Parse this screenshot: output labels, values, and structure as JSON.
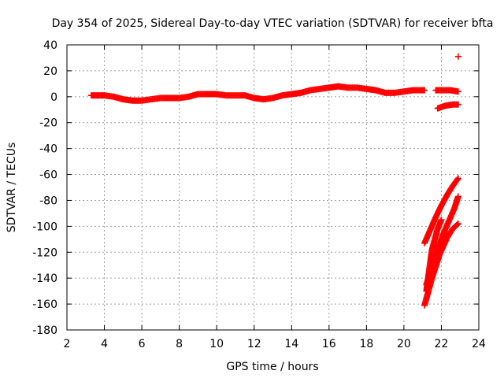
{
  "chart_data": {
    "type": "scatter",
    "title": "Day 354 of 2025, Sidereal Day-to-day VTEC variation (SDTVAR) for receiver bfta",
    "xlabel": "GPS time / hours",
    "ylabel": "SDTVAR / TECUs",
    "xlim": [
      2,
      24
    ],
    "ylim": [
      -180,
      40
    ],
    "xticks": [
      2,
      4,
      6,
      8,
      10,
      12,
      14,
      16,
      18,
      20,
      22,
      24
    ],
    "yticks": [
      -180,
      -160,
      -140,
      -120,
      -100,
      -80,
      -60,
      -40,
      -20,
      0,
      20,
      40
    ],
    "grid": true,
    "marker": "+",
    "color": "#ff0000",
    "series": [
      {
        "name": "main-trace",
        "x": [
          3.3,
          4.0,
          4.5,
          5.0,
          5.5,
          6.0,
          6.5,
          7.0,
          7.5,
          8.0,
          8.5,
          9.0,
          9.5,
          10.0,
          10.5,
          11.0,
          11.5,
          12.0,
          12.5,
          13.0,
          13.5,
          14.0,
          14.5,
          15.0,
          15.5,
          16.0,
          16.5,
          17.0,
          17.5,
          18.0,
          18.5,
          19.0,
          19.5,
          20.0,
          20.5,
          21.1
        ],
        "y": [
          1,
          1,
          0,
          -2,
          -3,
          -3,
          -2,
          -1,
          -1,
          -1,
          0,
          2,
          2,
          2,
          1,
          1,
          1,
          -1,
          -2,
          -1,
          1,
          2,
          3,
          5,
          6,
          7,
          8,
          7,
          7,
          6,
          5,
          3,
          3,
          4,
          5,
          5
        ]
      },
      {
        "name": "late-upper-1",
        "x": [
          21.7,
          22.0,
          22.5,
          22.9
        ],
        "y": [
          5,
          5,
          5,
          4
        ]
      },
      {
        "name": "late-upper-2",
        "x": [
          21.8,
          22.2,
          22.6,
          22.9
        ],
        "y": [
          -9,
          -7,
          -6,
          -6
        ]
      },
      {
        "name": "late-outlier",
        "x": [
          22.9
        ],
        "y": [
          31
        ]
      },
      {
        "name": "late-descent-1",
        "x": [
          21.1,
          21.4,
          21.7,
          22.0,
          22.3,
          22.6,
          22.9
        ],
        "y": [
          -113,
          -103,
          -93,
          -84,
          -76,
          -69,
          -63
        ]
      },
      {
        "name": "late-descent-2",
        "x": [
          21.2,
          21.5,
          21.8,
          22.1,
          22.4,
          22.7,
          22.9
        ],
        "y": [
          -145,
          -131,
          -118,
          -106,
          -96,
          -86,
          -77
        ]
      },
      {
        "name": "late-descent-3",
        "x": [
          21.1,
          21.5,
          21.9,
          22.3,
          22.6,
          22.9
        ],
        "y": [
          -161,
          -140,
          -122,
          -109,
          -102,
          -98
        ]
      },
      {
        "name": "late-descent-4",
        "x": [
          21.2,
          21.5,
          21.8,
          22.0
        ],
        "y": [
          -150,
          -118,
          -102,
          -95
        ]
      }
    ]
  }
}
